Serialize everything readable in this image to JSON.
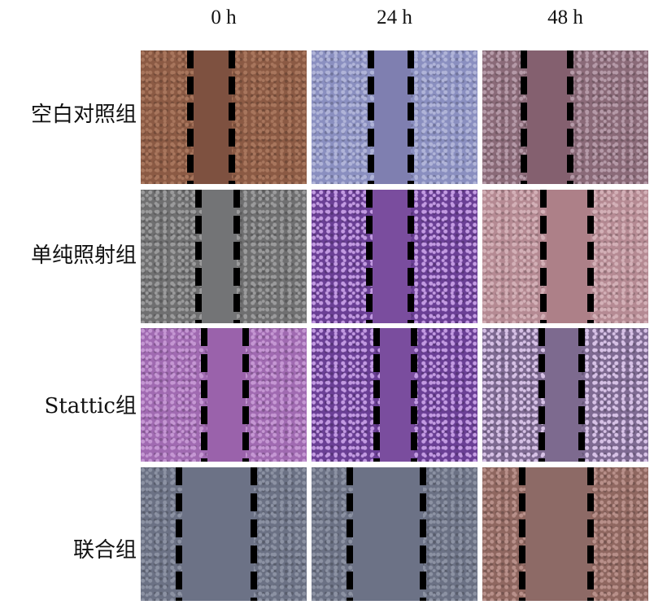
{
  "columns": [
    "0 h",
    "24 h",
    "48 h"
  ],
  "rows": [
    {
      "label": "空白对照组",
      "panels": [
        {
          "base": "#8b5a44",
          "cell": "#a8765d",
          "gap": "#7e5140",
          "edges": [
            0.3,
            0.55
          ]
        },
        {
          "base": "#8a8fc0",
          "cell": "#b0b4d8",
          "gap": "#7f7fb0",
          "edges": [
            0.36,
            0.6
          ]
        },
        {
          "base": "#8a6a78",
          "cell": "#b59aa8",
          "gap": "#84606f",
          "edges": [
            0.25,
            0.53
          ]
        }
      ]
    },
    {
      "label": "单纯照射组",
      "panels": [
        {
          "base": "#6f6f70",
          "cell": "#9b9b9c",
          "gap": "#737476",
          "edges": [
            0.35,
            0.58
          ]
        },
        {
          "base": "#6a3f95",
          "cell": "#c39be2",
          "gap": "#7a4d9e",
          "edges": [
            0.35,
            0.6
          ]
        },
        {
          "base": "#b58a93",
          "cell": "#d3b0b7",
          "gap": "#ad8088",
          "edges": [
            0.37,
            0.65
          ]
        }
      ]
    },
    {
      "label": "Stattic组",
      "panels": [
        {
          "base": "#a06ab1",
          "cell": "#c597d3",
          "gap": "#9a62ab",
          "edges": [
            0.38,
            0.63
          ]
        },
        {
          "base": "#6a3f95",
          "cell": "#c39be2",
          "gap": "#7a4d9e",
          "edges": [
            0.39,
            0.62
          ]
        },
        {
          "base": "#7e6a92",
          "cell": "#d7c2e6",
          "gap": "#7d6a8f",
          "edges": [
            0.36,
            0.6
          ]
        }
      ]
    },
    {
      "label": "联合组",
      "panels": [
        {
          "base": "#6b7184",
          "cell": "#8c92a3",
          "gap": "#6c7286",
          "edges": [
            0.23,
            0.68
          ]
        },
        {
          "base": "#6b7184",
          "cell": "#8c92a3",
          "gap": "#6c7286",
          "edges": [
            0.23,
            0.67
          ]
        },
        {
          "base": "#8f6760",
          "cell": "#b8908a",
          "gap": "#8d6a66",
          "edges": [
            0.24,
            0.65
          ]
        }
      ]
    }
  ]
}
